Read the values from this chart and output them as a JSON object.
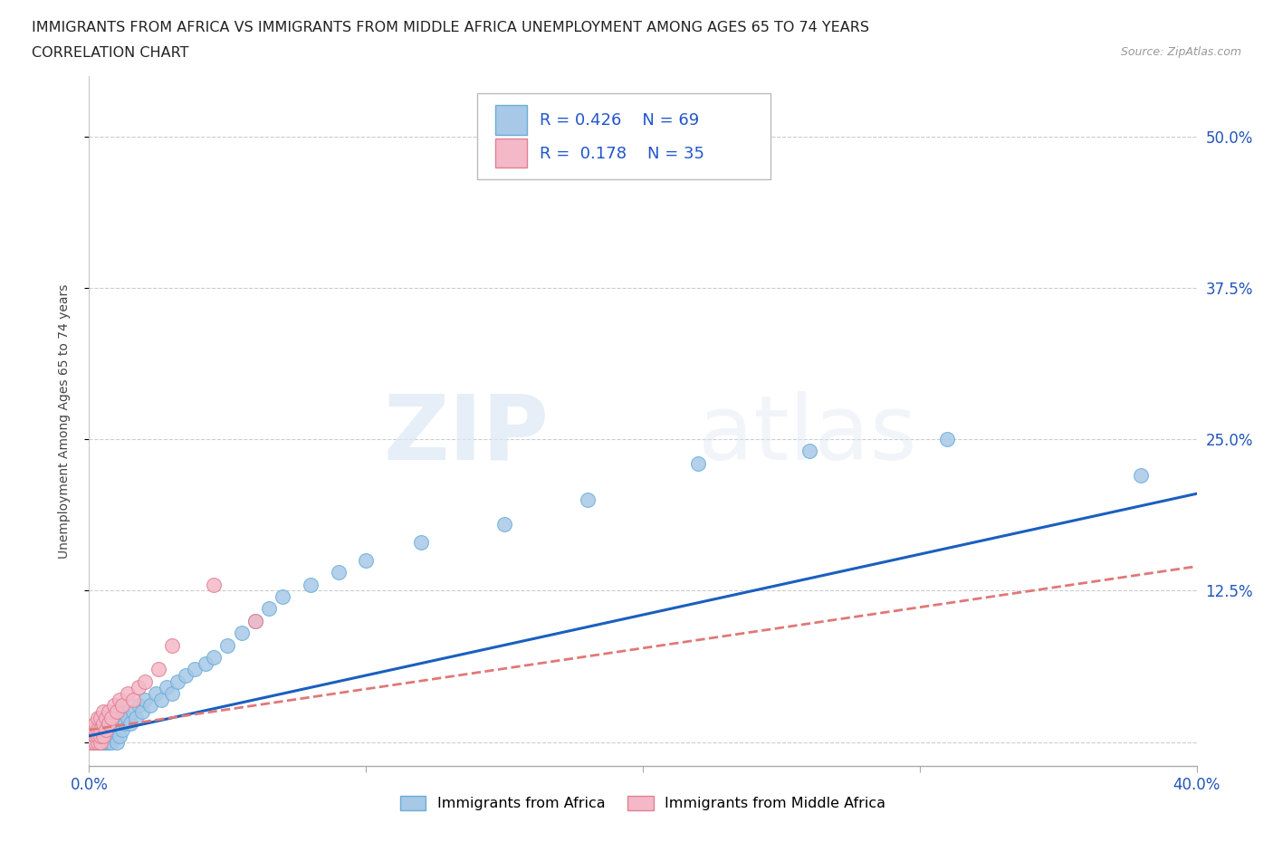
{
  "title_line1": "IMMIGRANTS FROM AFRICA VS IMMIGRANTS FROM MIDDLE AFRICA UNEMPLOYMENT AMONG AGES 65 TO 74 YEARS",
  "title_line2": "CORRELATION CHART",
  "source": "Source: ZipAtlas.com",
  "ylabel": "Unemployment Among Ages 65 to 74 years",
  "xlim": [
    0.0,
    0.4
  ],
  "ylim": [
    -0.02,
    0.55
  ],
  "xticks": [
    0.0,
    0.1,
    0.2,
    0.3,
    0.4
  ],
  "xtick_labels": [
    "0.0%",
    "",
    "",
    "",
    "40.0%"
  ],
  "ytick_positions": [
    0.0,
    0.125,
    0.25,
    0.375,
    0.5
  ],
  "ytick_labels": [
    "",
    "12.5%",
    "25.0%",
    "37.5%",
    "50.0%"
  ],
  "grid_color": "#cccccc",
  "background_color": "#ffffff",
  "watermark_zip": "ZIP",
  "watermark_atlas": "atlas",
  "R_africa": 0.426,
  "N_africa": 69,
  "R_middle": 0.178,
  "N_middle": 35,
  "scatter_africa_color": "#a8c8e8",
  "scatter_africa_edge": "#6aaed6",
  "scatter_middle_color": "#f4b8c8",
  "scatter_middle_edge": "#e08090",
  "line_africa_color": "#1a5fbf",
  "line_middle_color": "#e07878",
  "legend_africa_label": "Immigrants from Africa",
  "legend_middle_label": "Immigrants from Middle Africa",
  "africa_x": [
    0.001,
    0.002,
    0.002,
    0.003,
    0.003,
    0.003,
    0.003,
    0.003,
    0.004,
    0.004,
    0.004,
    0.004,
    0.005,
    0.005,
    0.005,
    0.005,
    0.005,
    0.006,
    0.006,
    0.006,
    0.006,
    0.007,
    0.007,
    0.007,
    0.007,
    0.008,
    0.008,
    0.008,
    0.009,
    0.009,
    0.01,
    0.01,
    0.011,
    0.011,
    0.012,
    0.012,
    0.013,
    0.014,
    0.015,
    0.016,
    0.017,
    0.018,
    0.019,
    0.02,
    0.022,
    0.024,
    0.026,
    0.028,
    0.03,
    0.032,
    0.035,
    0.038,
    0.042,
    0.045,
    0.05,
    0.055,
    0.06,
    0.065,
    0.07,
    0.08,
    0.09,
    0.1,
    0.12,
    0.15,
    0.18,
    0.22,
    0.26,
    0.31,
    0.38
  ],
  "africa_y": [
    0.0,
    0.0,
    0.0,
    0.0,
    0.0,
    0.0,
    0.01,
    0.005,
    0.0,
    0.0,
    0.01,
    0.005,
    0.0,
    0.0,
    0.005,
    0.01,
    0.015,
    0.0,
    0.005,
    0.01,
    0.02,
    0.0,
    0.005,
    0.01,
    0.02,
    0.0,
    0.008,
    0.015,
    0.005,
    0.01,
    0.0,
    0.015,
    0.005,
    0.02,
    0.01,
    0.025,
    0.015,
    0.02,
    0.015,
    0.025,
    0.02,
    0.03,
    0.025,
    0.035,
    0.03,
    0.04,
    0.035,
    0.045,
    0.04,
    0.05,
    0.055,
    0.06,
    0.065,
    0.07,
    0.08,
    0.09,
    0.1,
    0.11,
    0.12,
    0.13,
    0.14,
    0.15,
    0.165,
    0.18,
    0.2,
    0.23,
    0.24,
    0.25,
    0.22
  ],
  "middle_x": [
    0.001,
    0.001,
    0.001,
    0.002,
    0.002,
    0.002,
    0.002,
    0.003,
    0.003,
    0.003,
    0.003,
    0.004,
    0.004,
    0.004,
    0.004,
    0.005,
    0.005,
    0.005,
    0.006,
    0.006,
    0.007,
    0.007,
    0.008,
    0.009,
    0.01,
    0.011,
    0.012,
    0.014,
    0.016,
    0.018,
    0.02,
    0.025,
    0.03,
    0.045,
    0.06
  ],
  "middle_y": [
    0.0,
    0.0,
    0.01,
    0.0,
    0.005,
    0.01,
    0.015,
    0.0,
    0.005,
    0.01,
    0.02,
    0.0,
    0.005,
    0.01,
    0.02,
    0.005,
    0.015,
    0.025,
    0.01,
    0.02,
    0.015,
    0.025,
    0.02,
    0.03,
    0.025,
    0.035,
    0.03,
    0.04,
    0.035,
    0.045,
    0.05,
    0.06,
    0.08,
    0.13,
    0.1
  ],
  "africa_line_x": [
    0.0,
    0.4
  ],
  "africa_line_y": [
    0.005,
    0.205
  ],
  "middle_line_x": [
    0.0,
    0.4
  ],
  "middle_line_y": [
    0.01,
    0.145
  ]
}
